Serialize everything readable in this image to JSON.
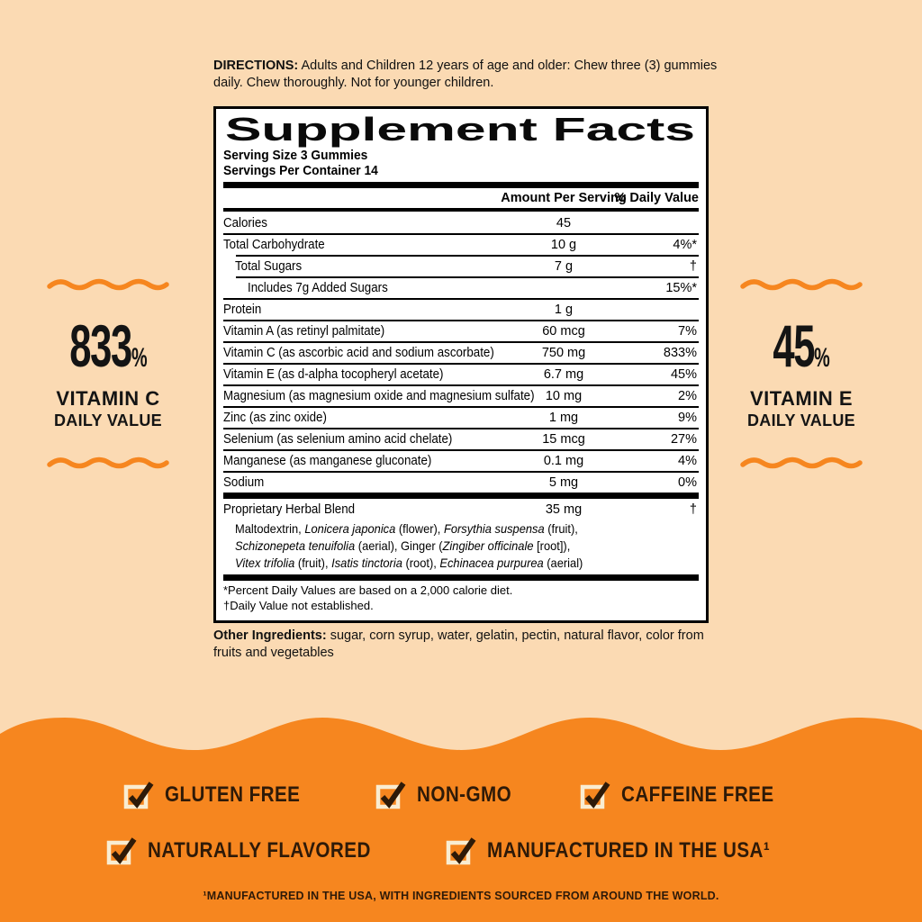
{
  "colors": {
    "background": "#fbdab3",
    "orange": "#f6861f",
    "panel_bg": "#ffffff",
    "ink": "#000000",
    "dark_brown": "#2e1a08",
    "checkbox_cream": "#f9edd2"
  },
  "directions": {
    "label": "DIRECTIONS:",
    "text": " Adults and Children 12 years of age and older: Chew three (3) gummies daily. Chew thoroughly. Not for younger children."
  },
  "supplement_facts": {
    "title": "Supplement Facts",
    "serving_size": "Serving Size 3 Gummies",
    "servings_per_container": "Servings Per Container 14",
    "columns": {
      "amount": "Amount Per Serving",
      "daily_value": "% Daily Value"
    },
    "rows": [
      {
        "name": "Calories",
        "amount": "45",
        "dv": "",
        "indent": 0
      },
      {
        "name": "Total Carbohydrate",
        "amount": "10 g",
        "dv": "4%*",
        "indent": 0
      },
      {
        "name": "Total Sugars",
        "amount": "7 g",
        "dv": "†",
        "indent": 1
      },
      {
        "name": "Includes 7g Added Sugars",
        "amount": "",
        "dv": "15%*",
        "indent": 2
      },
      {
        "name": "Protein",
        "amount": "1 g",
        "dv": "",
        "indent": 0
      },
      {
        "name": "Vitamin A (as retinyl palmitate)",
        "amount": "60 mcg",
        "dv": "7%",
        "indent": 0
      },
      {
        "name": "Vitamin C (as ascorbic acid and sodium ascorbate)",
        "amount": "750 mg",
        "dv": "833%",
        "indent": 0
      },
      {
        "name": "Vitamin E (as d-alpha tocopheryl acetate)",
        "amount": "6.7 mg",
        "dv": "45%",
        "indent": 0
      },
      {
        "name": "Magnesium (as magnesium oxide and magnesium sulfate)",
        "amount": "10 mg",
        "dv": "2%",
        "indent": 0
      },
      {
        "name": "Zinc (as zinc oxide)",
        "amount": "1 mg",
        "dv": "9%",
        "indent": 0
      },
      {
        "name": "Selenium (as selenium amino acid chelate)",
        "amount": "15 mcg",
        "dv": "27%",
        "indent": 0
      },
      {
        "name": "Manganese (as manganese gluconate)",
        "amount": "0.1 mg",
        "dv": "4%",
        "indent": 0
      },
      {
        "name": "Sodium",
        "amount": "5 mg",
        "dv": "0%",
        "indent": 0
      }
    ],
    "herbal_blend": {
      "name": "Proprietary Herbal Blend",
      "amount": "35 mg",
      "dv": "†",
      "lines": [
        [
          {
            "t": "Maltodextrin, "
          },
          {
            "t": "Lonicera japonica",
            "i": true
          },
          {
            "t": " (flower), "
          },
          {
            "t": "Forsythia suspensa",
            "i": true
          },
          {
            "t": " (fruit),"
          }
        ],
        [
          {
            "t": "Schizonepeta tenuifolia",
            "i": true
          },
          {
            "t": " (aerial), Ginger ("
          },
          {
            "t": "Zingiber officinale",
            "i": true
          },
          {
            "t": " [root]),"
          }
        ],
        [
          {
            "t": "Vitex trifolia",
            "i": true
          },
          {
            "t": " (fruit), "
          },
          {
            "t": "Isatis tinctoria",
            "i": true
          },
          {
            "t": " (root), "
          },
          {
            "t": "Echinacea purpurea",
            "i": true
          },
          {
            "t": " (aerial)"
          }
        ]
      ]
    },
    "footnotes": [
      "*Percent Daily Values are based on a 2,000 calorie diet.",
      "†Daily Value not established."
    ]
  },
  "other_ingredients": {
    "label": "Other Ingredients:",
    "text": " sugar, corn syrup, water, gelatin, pectin, natural flavor, color from fruits and vegetables"
  },
  "callouts": {
    "left": {
      "value": "833",
      "percent": "%",
      "line1": "VITAMIN C",
      "line2": "DAILY VALUE"
    },
    "right": {
      "value": "45",
      "percent": "%",
      "line1": "VITAMIN E",
      "line2": "DAILY VALUE"
    }
  },
  "badges": {
    "row1": [
      "GLUTEN FREE",
      "NON-GMO",
      "CAFFEINE FREE"
    ],
    "row2": [
      "NATURALLY FLAVORED",
      "MANUFACTURED IN THE USA¹"
    ],
    "footnote": "¹MANUFACTURED IN THE USA, WITH INGREDIENTS SOURCED FROM AROUND THE WORLD."
  }
}
